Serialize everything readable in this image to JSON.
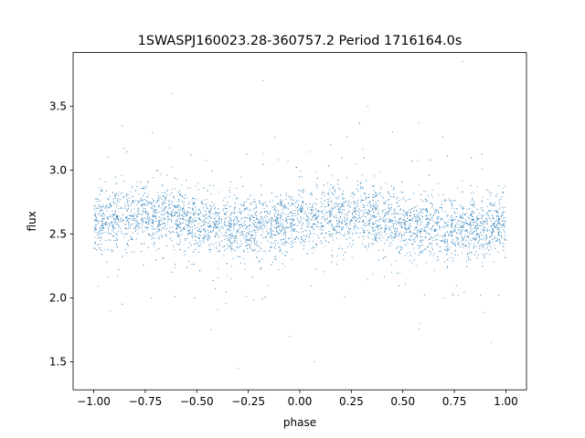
{
  "chart_data": {
    "type": "scatter",
    "title": "1SWASPJ160023.28-360757.2 Period 1716164.0s",
    "xlabel": "phase",
    "ylabel": "flux",
    "xlim": [
      -1.1,
      1.1
    ],
    "ylim": [
      1.28,
      3.92
    ],
    "x_ticks": [
      -1.0,
      -0.75,
      -0.5,
      -0.25,
      0.0,
      0.25,
      0.5,
      0.75,
      1.0
    ],
    "x_tick_labels": [
      "−1.00",
      "−0.75",
      "−0.50",
      "−0.25",
      "0.00",
      "0.25",
      "0.50",
      "0.75",
      "1.00"
    ],
    "y_ticks": [
      1.5,
      2.0,
      2.5,
      3.0,
      3.5
    ],
    "y_tick_labels": [
      "1.5",
      "2.0",
      "2.5",
      "3.0",
      "3.5"
    ],
    "grid": false,
    "marker_color": "#1f77b4",
    "series": [
      {
        "x_range": [
          -1.0,
          1.0
        ],
        "points": [
          [
            -0.98,
            2.6
          ],
          [
            -0.95,
            2.55
          ],
          [
            -0.93,
            3.1
          ],
          [
            -0.9,
            2.45
          ],
          [
            -0.88,
            2.7
          ],
          [
            -0.85,
            2.5
          ],
          [
            -0.8,
            2.65
          ],
          [
            -0.75,
            2.55
          ],
          [
            -0.7,
            2.6
          ],
          [
            -0.65,
            2.5
          ],
          [
            -0.6,
            2.6
          ],
          [
            -0.55,
            2.65
          ],
          [
            -0.5,
            2.55
          ],
          [
            -0.45,
            2.7
          ],
          [
            -0.4,
            2.6
          ],
          [
            -0.35,
            2.75
          ],
          [
            -0.3,
            2.6
          ],
          [
            -0.25,
            2.65
          ],
          [
            -0.2,
            2.55
          ],
          [
            -0.15,
            2.6
          ],
          [
            -0.1,
            2.5
          ],
          [
            -0.05,
            2.55
          ],
          [
            0.0,
            2.6
          ],
          [
            0.05,
            2.5
          ],
          [
            0.1,
            2.55
          ],
          [
            0.15,
            2.6
          ],
          [
            0.2,
            2.5
          ],
          [
            0.25,
            2.6
          ],
          [
            0.3,
            2.55
          ],
          [
            0.35,
            2.5
          ],
          [
            0.4,
            2.55
          ],
          [
            0.45,
            2.6
          ],
          [
            0.5,
            2.65
          ],
          [
            0.55,
            2.6
          ],
          [
            0.6,
            2.7
          ],
          [
            0.65,
            2.65
          ],
          [
            0.7,
            2.6
          ],
          [
            0.75,
            2.7
          ],
          [
            0.8,
            2.65
          ],
          [
            0.85,
            2.6
          ],
          [
            0.9,
            2.55
          ],
          [
            0.95,
            2.6
          ],
          [
            0.98,
            2.55
          ],
          [
            -0.92,
            1.9
          ],
          [
            -0.62,
            3.6
          ],
          [
            -0.43,
            1.75
          ],
          [
            -0.18,
            3.7
          ],
          [
            0.07,
            1.5
          ],
          [
            0.33,
            3.5
          ],
          [
            0.58,
            1.8
          ],
          [
            0.79,
            3.85
          ],
          [
            0.93,
            1.65
          ],
          [
            -0.3,
            1.45
          ],
          [
            0.45,
            3.3
          ],
          [
            -0.72,
            2.0
          ],
          [
            0.15,
            3.2
          ],
          [
            0.7,
            2.0
          ],
          [
            -0.05,
            1.7
          ]
        ]
      }
    ]
  }
}
